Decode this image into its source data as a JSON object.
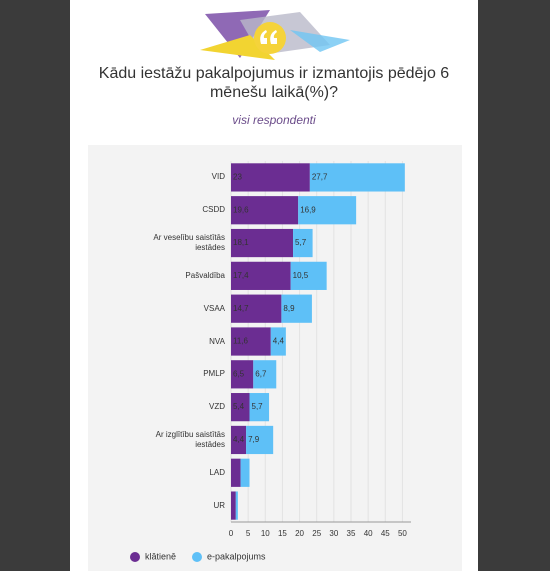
{
  "chart_data": {
    "type": "stacked-barh",
    "title": "Kādu iestāžu pakalpojumus ir izmantojis pēdējo 6 mēnešu laikā(%)?",
    "subtitle": "visi respondenti",
    "categories": [
      "VID",
      "CSDD",
      "Ar veselību saistītās iestādes",
      "Pašvaldība",
      "VSAA",
      "NVA",
      "PMLP",
      "VZD",
      "Ar izglītību saistītās iestādes",
      "LAD",
      "UR"
    ],
    "series": [
      {
        "name": "klātienē",
        "color": "#6b2d92",
        "values": [
          23,
          19.6,
          18.1,
          17.4,
          14.7,
          11.6,
          6.5,
          5.4,
          4.4,
          2.8,
          1.4
        ],
        "value_labels": [
          "23",
          "19,6",
          "18,1",
          "17,4",
          "14,7",
          "11,6",
          "6,5",
          "5,4",
          "4,4",
          null,
          null
        ]
      },
      {
        "name": "e-pakalpojums",
        "color": "#5ec0f7",
        "values": [
          27.7,
          16.9,
          5.7,
          10.5,
          8.9,
          4.4,
          6.7,
          5.7,
          7.9,
          2.6,
          0.6
        ],
        "value_labels": [
          "27,7",
          "16,9",
          "5,7",
          "10,5",
          "8,9",
          "4,4",
          "6,7",
          "5,7",
          "7,9",
          null,
          null
        ]
      }
    ],
    "xlim": [
      0,
      52.5
    ],
    "xticks": [
      0,
      5,
      10,
      15,
      20,
      25,
      30,
      35,
      40,
      45,
      50
    ],
    "grid": true
  }
}
